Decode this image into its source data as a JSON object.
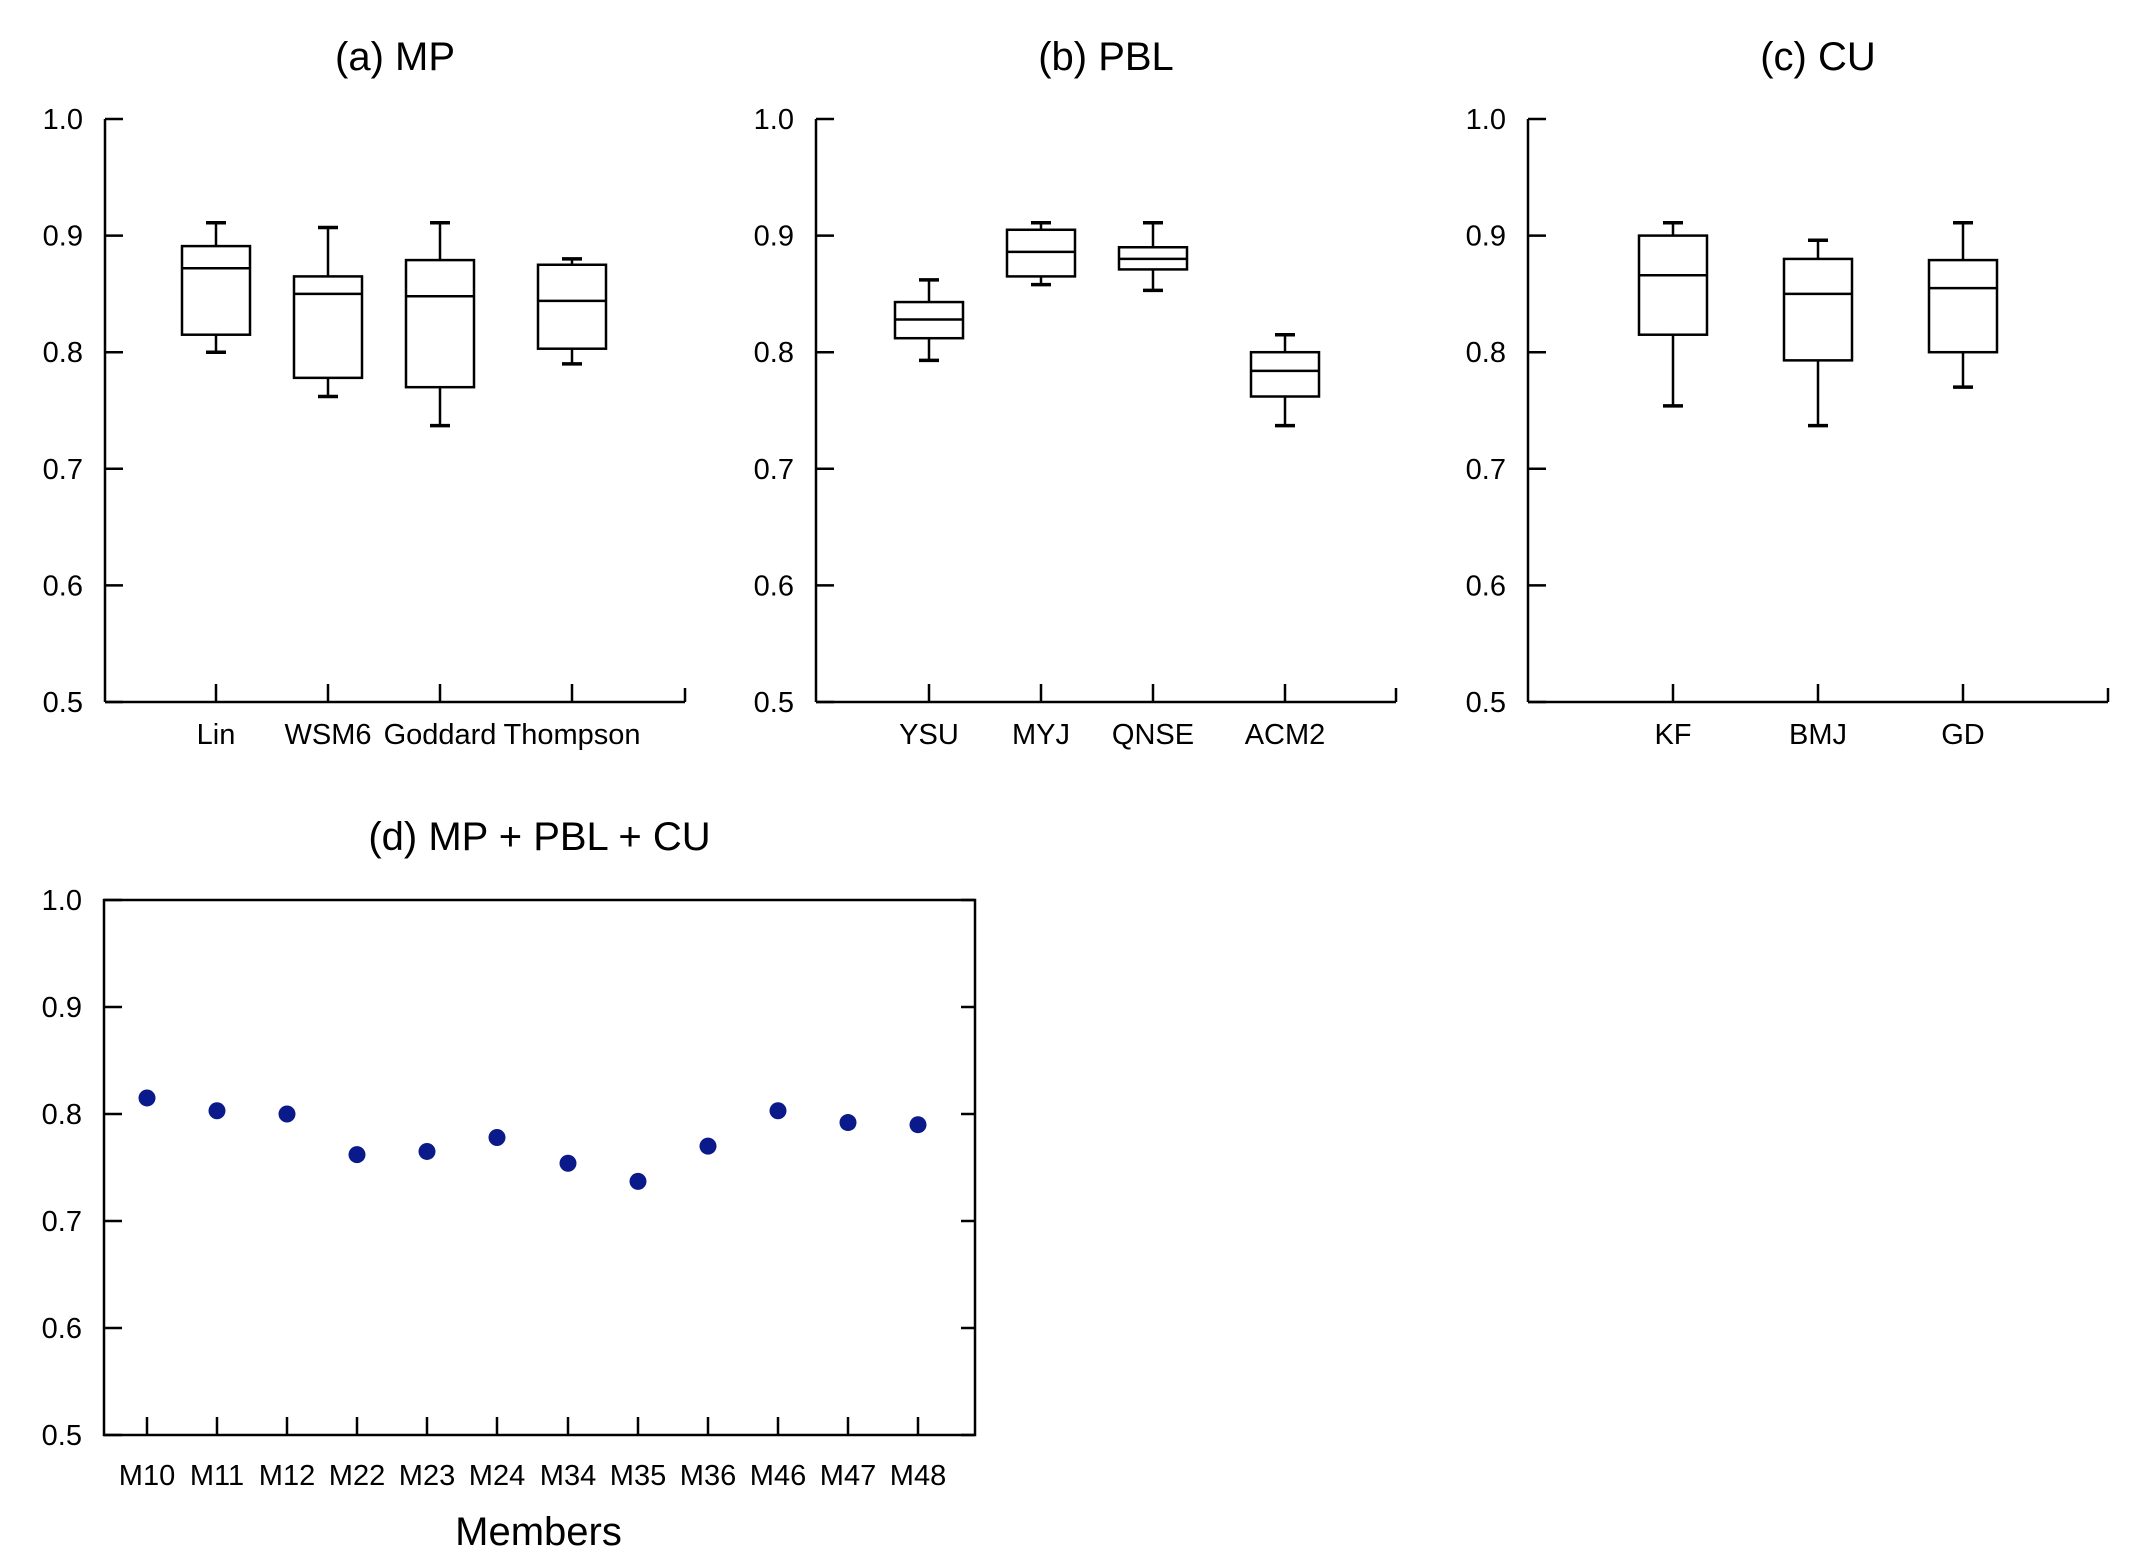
{
  "chart_data": [
    {
      "type": "box",
      "title": "(a) MP",
      "ylim": [
        0.5,
        1.0
      ],
      "yticks": [
        "1.0",
        "0.9",
        "0.8",
        "0.7",
        "0.6",
        "0.5"
      ],
      "categories": [
        "Lin",
        "WSM6",
        "Goddard",
        "Thompson"
      ],
      "boxes": [
        {
          "min": 0.8,
          "q1": 0.815,
          "median": 0.872,
          "q3": 0.891,
          "max": 0.911
        },
        {
          "min": 0.762,
          "q1": 0.778,
          "median": 0.85,
          "q3": 0.865,
          "max": 0.907
        },
        {
          "min": 0.737,
          "q1": 0.77,
          "median": 0.848,
          "q3": 0.879,
          "max": 0.911
        },
        {
          "min": 0.79,
          "q1": 0.803,
          "median": 0.844,
          "q3": 0.875,
          "max": 0.88
        }
      ]
    },
    {
      "type": "box",
      "title": "(b) PBL",
      "ylim": [
        0.5,
        1.0
      ],
      "yticks": [
        "1.0",
        "0.9",
        "0.8",
        "0.7",
        "0.6",
        "0.5"
      ],
      "categories": [
        "YSU",
        "MYJ",
        "QNSE",
        "ACM2"
      ],
      "boxes": [
        {
          "min": 0.793,
          "q1": 0.812,
          "median": 0.828,
          "q3": 0.843,
          "max": 0.862
        },
        {
          "min": 0.858,
          "q1": 0.865,
          "median": 0.886,
          "q3": 0.905,
          "max": 0.911
        },
        {
          "min": 0.853,
          "q1": 0.871,
          "median": 0.88,
          "q3": 0.89,
          "max": 0.911
        },
        {
          "min": 0.737,
          "q1": 0.762,
          "median": 0.784,
          "q3": 0.8,
          "max": 0.815
        }
      ]
    },
    {
      "type": "box",
      "title": "(c) CU",
      "ylim": [
        0.5,
        1.0
      ],
      "yticks": [
        "1.0",
        "0.9",
        "0.8",
        "0.7",
        "0.6",
        "0.5"
      ],
      "categories": [
        "KF",
        "BMJ",
        "GD"
      ],
      "boxes": [
        {
          "min": 0.754,
          "q1": 0.815,
          "median": 0.866,
          "q3": 0.9,
          "max": 0.911
        },
        {
          "min": 0.737,
          "q1": 0.793,
          "median": 0.85,
          "q3": 0.88,
          "max": 0.896
        },
        {
          "min": 0.77,
          "q1": 0.8,
          "median": 0.855,
          "q3": 0.879,
          "max": 0.911
        }
      ]
    },
    {
      "type": "scatter",
      "title": "(d) MP + PBL + CU",
      "xlabel": "Members",
      "ylim": [
        0.5,
        1.0
      ],
      "yticks": [
        "1.0",
        "0.9",
        "0.8",
        "0.7",
        "0.6",
        "0.5"
      ],
      "categories": [
        "M10",
        "M11",
        "M12",
        "M22",
        "M23",
        "M24",
        "M34",
        "M35",
        "M36",
        "M46",
        "M47",
        "M48"
      ],
      "values": [
        0.815,
        0.803,
        0.8,
        0.762,
        0.765,
        0.778,
        0.754,
        0.737,
        0.77,
        0.803,
        0.792,
        0.79
      ],
      "marker_color": "#0a1a8a"
    }
  ]
}
